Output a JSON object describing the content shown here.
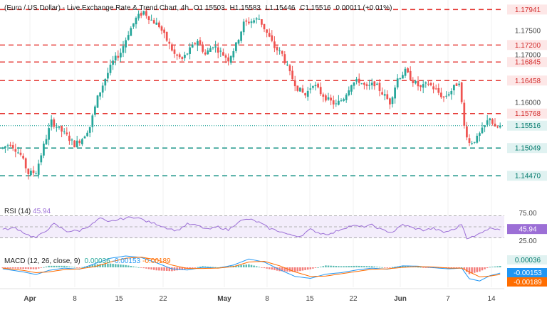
{
  "header": {
    "symbol": "(Euro / US Dollar) - Live Exchange Rate & Trend Chart, 4h",
    "ohlc": [
      {
        "key": "O",
        "value": "1.15503"
      },
      {
        "key": "H",
        "value": "1.15583"
      },
      {
        "key": "L",
        "value": "1.15446"
      },
      {
        "key": "C",
        "value": "1.15516"
      }
    ],
    "change": "0.00011 (+0.01%)"
  },
  "colors": {
    "up": "#26a69a",
    "down": "#ef5350",
    "resistance": "#e53935",
    "support": "#00897b",
    "current": "#009688",
    "rsi": "#9c6fd6",
    "macd": "#2196f3",
    "signal": "#ff6d00"
  },
  "chart_data": [
    {
      "type": "candlestick",
      "title": "(Euro / US Dollar) - Live Exchange Rate & Trend Chart, 4h",
      "timeframe": "4h",
      "x_ticks": [
        "Apr",
        "8",
        "15",
        "22",
        "May",
        "8",
        "15",
        "22",
        "Jun",
        "7",
        "14"
      ],
      "y_ticks": [
        "1.17500",
        "1.17000",
        "1.16000"
      ],
      "ylim": [
        1.1425,
        1.1808
      ],
      "resistance_levels": [
        "1.17941",
        "1.17200",
        "1.16845",
        "1.16458",
        "1.15768"
      ],
      "support_levels": [
        "1.15049",
        "1.14470"
      ],
      "current_price": "1.15516",
      "anchors": [
        [
          0,
          1.1505
        ],
        [
          3,
          1.1515
        ],
        [
          7,
          1.149
        ],
        [
          10,
          1.1452
        ],
        [
          13,
          1.1455
        ],
        [
          16,
          1.151
        ],
        [
          19,
          1.156
        ],
        [
          22,
          1.1545
        ],
        [
          25,
          1.153
        ],
        [
          28,
          1.1512
        ],
        [
          31,
          1.1525
        ],
        [
          34,
          1.155
        ],
        [
          37,
          1.161
        ],
        [
          40,
          1.165
        ],
        [
          43,
          1.1685
        ],
        [
          46,
          1.1705
        ],
        [
          49,
          1.1745
        ],
        [
          52,
          1.1775
        ],
        [
          55,
          1.179
        ],
        [
          58,
          1.1772
        ],
        [
          61,
          1.176
        ],
        [
          64,
          1.173
        ],
        [
          67,
          1.17
        ],
        [
          70,
          1.169
        ],
        [
          73,
          1.171
        ],
        [
          76,
          1.173
        ],
        [
          79,
          1.17
        ],
        [
          82,
          1.172
        ],
        [
          85,
          1.1705
        ],
        [
          88,
          1.169
        ],
        [
          91,
          1.172
        ],
        [
          94,
          1.1765
        ],
        [
          97,
          1.177
        ],
        [
          100,
          1.1775
        ],
        [
          103,
          1.1745
        ],
        [
          106,
          1.1715
        ],
        [
          109,
          1.17
        ],
        [
          112,
          1.166
        ],
        [
          115,
          1.163
        ],
        [
          118,
          1.1615
        ],
        [
          121,
          1.164
        ],
        [
          124,
          1.162
        ],
        [
          127,
          1.1605
        ],
        [
          130,
          1.1595
        ],
        [
          133,
          1.161
        ],
        [
          136,
          1.164
        ],
        [
          139,
          1.1645
        ],
        [
          142,
          1.163
        ],
        [
          145,
          1.164
        ],
        [
          148,
          1.162
        ],
        [
          151,
          1.16
        ],
        [
          154,
          1.165
        ],
        [
          157,
          1.1665
        ],
        [
          160,
          1.1645
        ],
        [
          163,
          1.163
        ],
        [
          166,
          1.164
        ],
        [
          169,
          1.1625
        ],
        [
          172,
          1.161
        ],
        [
          175,
          1.1625
        ],
        [
          178,
          1.1645
        ],
        [
          180,
          1.155
        ],
        [
          182,
          1.1515
        ],
        [
          185,
          1.1525
        ],
        [
          188,
          1.155
        ],
        [
          190,
          1.157
        ],
        [
          192,
          1.1545
        ],
        [
          194,
          1.155
        ]
      ]
    },
    {
      "type": "line",
      "name": "RSI (14)",
      "value": "45.94",
      "y_ticks": [
        "75.00",
        "25.00"
      ],
      "ylim": [
        15,
        85
      ],
      "levels": [
        70,
        50,
        30
      ],
      "anchors": [
        [
          0,
          45
        ],
        [
          5,
          48
        ],
        [
          10,
          35
        ],
        [
          13,
          30
        ],
        [
          16,
          40
        ],
        [
          20,
          55
        ],
        [
          25,
          42
        ],
        [
          30,
          43
        ],
        [
          35,
          55
        ],
        [
          38,
          66
        ],
        [
          41,
          58
        ],
        [
          44,
          62
        ],
        [
          48,
          66
        ],
        [
          52,
          68
        ],
        [
          56,
          60
        ],
        [
          60,
          55
        ],
        [
          64,
          48
        ],
        [
          68,
          43
        ],
        [
          72,
          55
        ],
        [
          76,
          52
        ],
        [
          80,
          45
        ],
        [
          84,
          50
        ],
        [
          88,
          44
        ],
        [
          92,
          60
        ],
        [
          96,
          64
        ],
        [
          100,
          58
        ],
        [
          104,
          47
        ],
        [
          108,
          42
        ],
        [
          112,
          35
        ],
        [
          116,
          33
        ],
        [
          120,
          45
        ],
        [
          124,
          38
        ],
        [
          128,
          37
        ],
        [
          132,
          46
        ],
        [
          136,
          52
        ],
        [
          140,
          50
        ],
        [
          144,
          53
        ],
        [
          148,
          44
        ],
        [
          152,
          40
        ],
        [
          156,
          54
        ],
        [
          160,
          48
        ],
        [
          164,
          44
        ],
        [
          168,
          47
        ],
        [
          172,
          40
        ],
        [
          176,
          45
        ],
        [
          179,
          55
        ],
        [
          181,
          30
        ],
        [
          184,
          32
        ],
        [
          188,
          44
        ],
        [
          191,
          48
        ],
        [
          194,
          45.94
        ]
      ]
    },
    {
      "type": "bar",
      "name": "MACD (12, 26, close, 9)",
      "values": [
        "0.00036",
        "-0.00153",
        "-0.00189"
      ],
      "labels": [
        "0.00036",
        "-0.00153",
        "-0.00189"
      ],
      "macd_anchors": [
        [
          0,
          -0.0004
        ],
        [
          8,
          -0.0012
        ],
        [
          13,
          -0.0019
        ],
        [
          18,
          -0.0008
        ],
        [
          24,
          -0.0002
        ],
        [
          30,
          -0.0005
        ],
        [
          36,
          0.001
        ],
        [
          42,
          0.0024
        ],
        [
          48,
          0.003
        ],
        [
          54,
          0.0026
        ],
        [
          60,
          0.0012
        ],
        [
          66,
          -0.0004
        ],
        [
          72,
          -0.0007
        ],
        [
          78,
          0.0
        ],
        [
          84,
          -0.0002
        ],
        [
          90,
          0.0006
        ],
        [
          96,
          0.0022
        ],
        [
          102,
          0.0014
        ],
        [
          108,
          -0.0006
        ],
        [
          114,
          -0.0024
        ],
        [
          120,
          -0.0029
        ],
        [
          126,
          -0.0018
        ],
        [
          132,
          -0.0014
        ],
        [
          138,
          -0.0007
        ],
        [
          144,
          -0.0002
        ],
        [
          150,
          -0.0005
        ],
        [
          156,
          0.0004
        ],
        [
          162,
          0.0003
        ],
        [
          168,
          -0.0001
        ],
        [
          174,
          -0.0004
        ],
        [
          179,
          -0.0002
        ],
        [
          182,
          -0.003
        ],
        [
          186,
          -0.0036
        ],
        [
          190,
          -0.0022
        ],
        [
          194,
          -0.00153
        ]
      ],
      "signal_anchors": [
        [
          0,
          -0.0002
        ],
        [
          8,
          -0.0008
        ],
        [
          13,
          -0.0014
        ],
        [
          18,
          -0.0012
        ],
        [
          24,
          -0.0006
        ],
        [
          30,
          -0.0004
        ],
        [
          36,
          0.0002
        ],
        [
          42,
          0.0014
        ],
        [
          48,
          0.0024
        ],
        [
          54,
          0.0027
        ],
        [
          60,
          0.002
        ],
        [
          66,
          0.0006
        ],
        [
          72,
          -0.0003
        ],
        [
          78,
          -0.0003
        ],
        [
          84,
          -0.0002
        ],
        [
          90,
          0.0002
        ],
        [
          96,
          0.0014
        ],
        [
          102,
          0.0016
        ],
        [
          108,
          0.0004
        ],
        [
          114,
          -0.0012
        ],
        [
          120,
          -0.0024
        ],
        [
          126,
          -0.0023
        ],
        [
          132,
          -0.0017
        ],
        [
          138,
          -0.0011
        ],
        [
          144,
          -0.0005
        ],
        [
          150,
          -0.0004
        ],
        [
          156,
          0.0
        ],
        [
          162,
          0.0002
        ],
        [
          168,
          0.0001
        ],
        [
          174,
          -0.0002
        ],
        [
          179,
          -0.0002
        ],
        [
          182,
          -0.0012
        ],
        [
          186,
          -0.0025
        ],
        [
          190,
          -0.0023
        ],
        [
          194,
          -0.00189
        ]
      ],
      "ylim": [
        -0.0045,
        0.0045
      ]
    }
  ]
}
